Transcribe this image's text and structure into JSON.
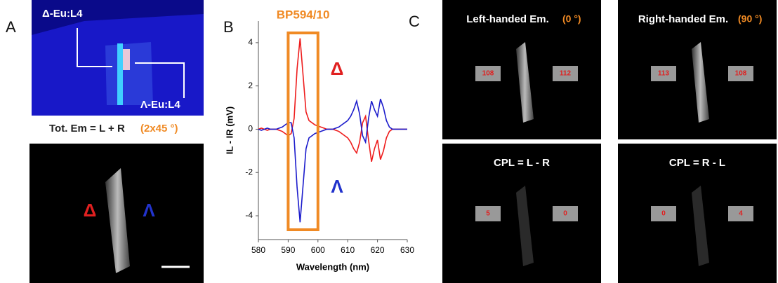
{
  "panel_labels": [
    "A",
    "B",
    "C"
  ],
  "panel_a": {
    "top_left_label": "Δ-Eu:L4",
    "top_right_label": "Λ-Eu:L4",
    "caption": "Tot. Em = L + R",
    "caption_angle": "(2x45 °)",
    "delta": "Δ",
    "lambda": "Λ"
  },
  "panel_c": {
    "titles": [
      {
        "text": "Left-handed Em.",
        "angle": "(0 °)"
      },
      {
        "text": "Right-handed Em.",
        "angle": "(90 °)"
      },
      {
        "text": "CPL = L - R"
      },
      {
        "text": "CPL = R - L"
      }
    ],
    "counts": [
      [
        "108",
        "112"
      ],
      [
        "113",
        "108"
      ],
      [
        "5",
        "0"
      ],
      [
        "0",
        "4"
      ]
    ]
  },
  "chart_data": {
    "type": "line",
    "xlabel": "Wavelength (nm)",
    "ylabel": "IL - IR (mV)",
    "xlim": [
      580,
      630
    ],
    "xticks": [
      580,
      590,
      600,
      610,
      620,
      630
    ],
    "ylim": [
      -5.1,
      5
    ],
    "yticks": [
      -4,
      -2,
      0,
      2,
      4
    ],
    "highlight": {
      "label": "BP594/10",
      "x": [
        590,
        600
      ],
      "color": "#f08a24"
    },
    "annotations": [
      {
        "text": "Δ",
        "color": "#e02020"
      },
      {
        "text": "Λ",
        "color": "#2233cc"
      }
    ],
    "x": [
      580,
      581,
      582,
      583,
      584,
      585,
      586,
      587,
      588,
      589,
      590,
      591,
      592,
      593,
      594,
      595,
      596,
      597,
      598,
      599,
      600,
      601,
      602,
      603,
      604,
      605,
      606,
      607,
      608,
      609,
      610,
      611,
      612,
      613,
      614,
      615,
      616,
      617,
      618,
      619,
      620,
      621,
      622,
      623,
      624,
      625,
      626,
      627,
      628,
      629,
      630
    ],
    "series": [
      {
        "name": "Δ",
        "color": "#ee1c1c",
        "values": [
          0,
          0.05,
          0,
          -0.05,
          0,
          0,
          0,
          -0.05,
          -0.1,
          -0.2,
          -0.3,
          -0.2,
          0.5,
          2.8,
          4.2,
          2.5,
          0.8,
          0.4,
          0.3,
          0.2,
          0.15,
          0.1,
          0.05,
          0,
          0,
          0,
          -0.05,
          -0.1,
          -0.2,
          -0.3,
          -0.4,
          -0.6,
          -0.9,
          -1.1,
          -0.6,
          0.3,
          0.6,
          -0.5,
          -1.5,
          -0.9,
          -0.5,
          -1.4,
          -1.0,
          -0.4,
          -0.1,
          0,
          0,
          0,
          0,
          0,
          0
        ]
      },
      {
        "name": "Λ",
        "color": "#1c1ccc",
        "values": [
          0,
          -0.05,
          0,
          0.05,
          0,
          0,
          0,
          0.05,
          0.1,
          0.2,
          0.3,
          0.3,
          -0.4,
          -2.7,
          -4.3,
          -2.6,
          -0.9,
          -0.4,
          -0.3,
          -0.2,
          -0.15,
          -0.1,
          -0.05,
          0,
          0,
          0,
          0.05,
          0.1,
          0.2,
          0.3,
          0.4,
          0.6,
          0.9,
          1.3,
          0.7,
          -0.3,
          -0.6,
          0.5,
          1.3,
          0.9,
          0.6,
          1.4,
          1.0,
          0.4,
          0.1,
          0,
          0,
          0,
          0,
          0,
          0
        ]
      }
    ]
  }
}
